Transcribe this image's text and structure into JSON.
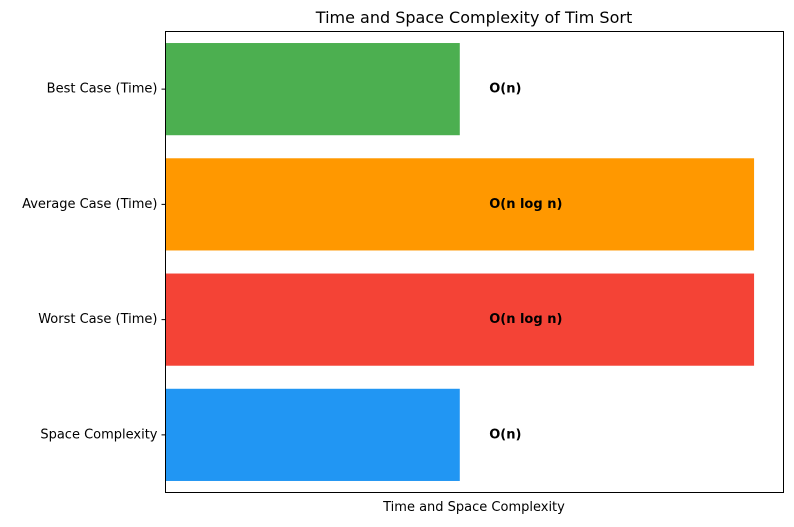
{
  "chart_data": {
    "type": "bar",
    "orientation": "horizontal",
    "title": "Time and Space Complexity of Tim Sort",
    "xlabel": "Time and Space Complexity",
    "ylabel": "",
    "categories": [
      "Best Case (Time)",
      "Average Case (Time)",
      "Worst Case (Time)",
      "Space Complexity"
    ],
    "values": [
      1,
      2,
      2,
      1
    ],
    "labels": [
      "O(n)",
      "O(n log n)",
      "O(n log n)",
      "O(n)"
    ],
    "colors": [
      "#4caf50",
      "#ff9800",
      "#f44336",
      "#2196f3"
    ],
    "xlim": [
      0,
      2.1
    ],
    "grid": false,
    "x_ticks_visible": false
  }
}
